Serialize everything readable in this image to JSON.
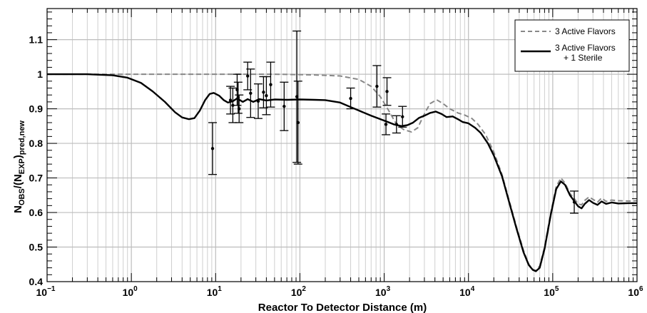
{
  "chart_data": {
    "type": "line",
    "xlabel": "Reactor To Detector Distance (m)",
    "ylabel_main": "N",
    "ylabel_sub1": "OBS",
    "ylabel_mid": "/(N",
    "ylabel_sub2": "EXP",
    "ylabel_close": ")",
    "ylabel_sub3": "pred,new",
    "x_scale": "log",
    "xlim": [
      0.1,
      1000000
    ],
    "ylim": [
      0.4,
      1.19
    ],
    "grid": true,
    "legend_position": "top-right",
    "x_ticks": [
      {
        "value": 0.1,
        "base": "10",
        "exp": "−1"
      },
      {
        "value": 1,
        "base": "10",
        "exp": "0"
      },
      {
        "value": 10,
        "base": "10",
        "exp": "1"
      },
      {
        "value": 100,
        "base": "10",
        "exp": "2"
      },
      {
        "value": 1000,
        "base": "10",
        "exp": "3"
      },
      {
        "value": 10000,
        "base": "10",
        "exp": "4"
      },
      {
        "value": 100000,
        "base": "10",
        "exp": "5"
      },
      {
        "value": 1000000,
        "base": "10",
        "exp": "6"
      }
    ],
    "y_ticks": [
      {
        "value": 0.4,
        "label": "0.4"
      },
      {
        "value": 0.5,
        "label": "0.5"
      },
      {
        "value": 0.6,
        "label": "0.6"
      },
      {
        "value": 0.7,
        "label": "0.7"
      },
      {
        "value": 0.8,
        "label": "0.8"
      },
      {
        "value": 0.9,
        "label": "0.9"
      },
      {
        "value": 1.0,
        "label": "1"
      },
      {
        "value": 1.1,
        "label": "1.1"
      }
    ],
    "series": [
      {
        "name": "3 Active Flavors",
        "style": "dashed",
        "color": "#888888",
        "points": [
          [
            0.1,
            1.0
          ],
          [
            50,
            1.0
          ],
          [
            150,
            0.998
          ],
          [
            300,
            0.995
          ],
          [
            500,
            0.985
          ],
          [
            700,
            0.965
          ],
          [
            900,
            0.935
          ],
          [
            1100,
            0.9
          ],
          [
            1400,
            0.855
          ],
          [
            1700,
            0.84
          ],
          [
            2100,
            0.833
          ],
          [
            2500,
            0.845
          ],
          [
            3000,
            0.885
          ],
          [
            3500,
            0.915
          ],
          [
            4200,
            0.926
          ],
          [
            5000,
            0.915
          ],
          [
            6000,
            0.9
          ],
          [
            7500,
            0.888
          ],
          [
            9000,
            0.882
          ],
          [
            11000,
            0.872
          ],
          [
            13000,
            0.855
          ],
          [
            16000,
            0.825
          ],
          [
            20000,
            0.775
          ],
          [
            25000,
            0.71
          ],
          [
            30000,
            0.64
          ],
          [
            37000,
            0.56
          ],
          [
            45000,
            0.49
          ],
          [
            52000,
            0.45
          ],
          [
            58000,
            0.435
          ],
          [
            63000,
            0.432
          ],
          [
            70000,
            0.445
          ],
          [
            80000,
            0.5
          ],
          [
            95000,
            0.6
          ],
          [
            110000,
            0.675
          ],
          [
            125000,
            0.7
          ],
          [
            140000,
            0.685
          ],
          [
            160000,
            0.655
          ],
          [
            180000,
            0.64
          ],
          [
            200000,
            0.625
          ],
          [
            220000,
            0.622
          ],
          [
            240000,
            0.635
          ],
          [
            270000,
            0.645
          ],
          [
            300000,
            0.638
          ],
          [
            340000,
            0.63
          ],
          [
            380000,
            0.642
          ],
          [
            430000,
            0.632
          ],
          [
            500000,
            0.636
          ],
          [
            600000,
            0.634
          ],
          [
            800000,
            0.633
          ],
          [
            1000000,
            0.634
          ]
        ]
      },
      {
        "name": "3 Active Flavors\n+ 1 Sterile",
        "style": "solid",
        "color": "#000000",
        "points": [
          [
            0.1,
            1.0
          ],
          [
            0.3,
            1.0
          ],
          [
            0.6,
            0.997
          ],
          [
            0.9,
            0.99
          ],
          [
            1.3,
            0.975
          ],
          [
            1.8,
            0.95
          ],
          [
            2.5,
            0.92
          ],
          [
            3.3,
            0.89
          ],
          [
            4.0,
            0.875
          ],
          [
            4.8,
            0.87
          ],
          [
            5.6,
            0.873
          ],
          [
            6.5,
            0.895
          ],
          [
            7.5,
            0.925
          ],
          [
            8.5,
            0.943
          ],
          [
            9.5,
            0.946
          ],
          [
            11,
            0.938
          ],
          [
            12.5,
            0.925
          ],
          [
            14,
            0.918
          ],
          [
            16,
            0.922
          ],
          [
            18,
            0.93
          ],
          [
            21,
            0.92
          ],
          [
            24,
            0.928
          ],
          [
            28,
            0.92
          ],
          [
            33,
            0.928
          ],
          [
            40,
            0.924
          ],
          [
            50,
            0.927
          ],
          [
            70,
            0.926
          ],
          [
            100,
            0.927
          ],
          [
            150,
            0.926
          ],
          [
            200,
            0.925
          ],
          [
            300,
            0.918
          ],
          [
            400,
            0.905
          ],
          [
            500,
            0.895
          ],
          [
            700,
            0.88
          ],
          [
            900,
            0.87
          ],
          [
            1100,
            0.862
          ],
          [
            1300,
            0.855
          ],
          [
            1600,
            0.85
          ],
          [
            1900,
            0.853
          ],
          [
            2200,
            0.86
          ],
          [
            2600,
            0.874
          ],
          [
            3000,
            0.88
          ],
          [
            3500,
            0.888
          ],
          [
            4100,
            0.892
          ],
          [
            4800,
            0.885
          ],
          [
            5500,
            0.876
          ],
          [
            6500,
            0.878
          ],
          [
            7500,
            0.87
          ],
          [
            8500,
            0.862
          ],
          [
            10000,
            0.858
          ],
          [
            12000,
            0.845
          ],
          [
            14000,
            0.83
          ],
          [
            17000,
            0.8
          ],
          [
            20000,
            0.765
          ],
          [
            25000,
            0.705
          ],
          [
            30000,
            0.635
          ],
          [
            37000,
            0.555
          ],
          [
            45000,
            0.485
          ],
          [
            52000,
            0.448
          ],
          [
            58000,
            0.434
          ],
          [
            63000,
            0.43
          ],
          [
            70000,
            0.44
          ],
          [
            80000,
            0.495
          ],
          [
            95000,
            0.595
          ],
          [
            110000,
            0.668
          ],
          [
            125000,
            0.69
          ],
          [
            140000,
            0.68
          ],
          [
            160000,
            0.65
          ],
          [
            180000,
            0.633
          ],
          [
            200000,
            0.618
          ],
          [
            220000,
            0.612
          ],
          [
            240000,
            0.625
          ],
          [
            270000,
            0.636
          ],
          [
            300000,
            0.628
          ],
          [
            340000,
            0.622
          ],
          [
            380000,
            0.632
          ],
          [
            430000,
            0.625
          ],
          [
            500000,
            0.629
          ],
          [
            600000,
            0.626
          ],
          [
            800000,
            0.627
          ],
          [
            1000000,
            0.627
          ]
        ]
      }
    ],
    "data_points": [
      {
        "x": 9.2,
        "y": 0.785,
        "err": 0.075
      },
      {
        "x": 15,
        "y": 0.925,
        "err": 0.04
      },
      {
        "x": 16,
        "y": 0.91,
        "err": 0.05
      },
      {
        "x": 18,
        "y": 0.955,
        "err": 0.045
      },
      {
        "x": 18.5,
        "y": 0.932,
        "err": 0.045
      },
      {
        "x": 19,
        "y": 0.9,
        "err": 0.04
      },
      {
        "x": 24,
        "y": 0.995,
        "err": 0.04
      },
      {
        "x": 26,
        "y": 0.945,
        "err": 0.07
      },
      {
        "x": 32,
        "y": 0.922,
        "err": 0.05
      },
      {
        "x": 37,
        "y": 0.948,
        "err": 0.045
      },
      {
        "x": 40,
        "y": 0.938,
        "err": 0.055
      },
      {
        "x": 45,
        "y": 0.97,
        "err": 0.065
      },
      {
        "x": 65,
        "y": 0.907,
        "err": 0.07
      },
      {
        "x": 92,
        "y": 0.935,
        "err": 0.19
      },
      {
        "x": 95,
        "y": 0.86,
        "err": 0.12
      },
      {
        "x": 400,
        "y": 0.93,
        "err": 0.03
      },
      {
        "x": 820,
        "y": 0.965,
        "err": 0.06
      },
      {
        "x": 1050,
        "y": 0.855,
        "err": 0.03
      },
      {
        "x": 1080,
        "y": 0.95,
        "err": 0.04
      },
      {
        "x": 1400,
        "y": 0.855,
        "err": 0.025
      },
      {
        "x": 1650,
        "y": 0.877,
        "err": 0.03
      },
      {
        "x": 180000,
        "y": 0.63,
        "err": 0.032
      }
    ]
  }
}
